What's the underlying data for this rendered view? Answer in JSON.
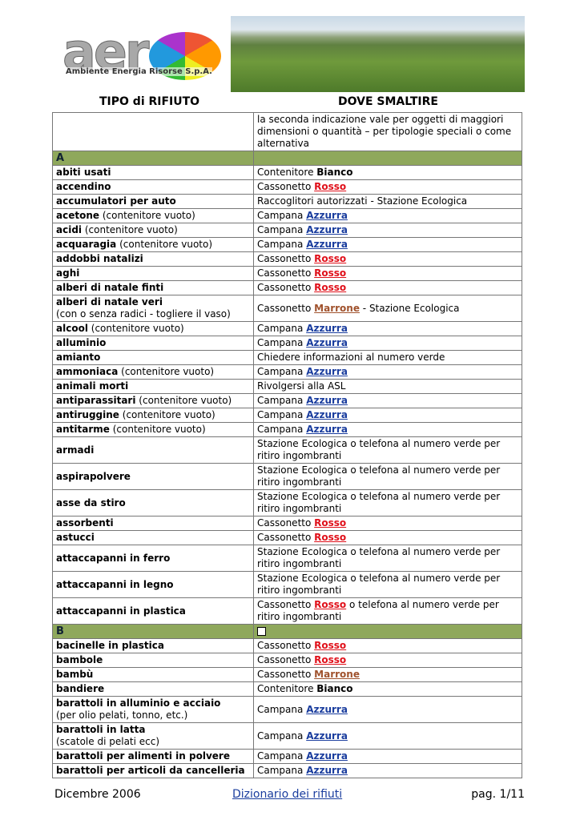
{
  "header": {
    "logo": "aer",
    "company": "Ambiente Energia Risorse S.p.A."
  },
  "columns": [
    "TIPO di RIFIUTO",
    "DOVE SMALTIRE"
  ],
  "intro": "la seconda indicazione vale per oggetti di maggiori dimensioni o quantità – per tipologie speciali o come alternativa",
  "sections": [
    {
      "letter": "A",
      "rows": [
        {
          "item": "abiti usati",
          "where": "Contenitore",
          "bin": "Bianco",
          "bin_color": "#000000"
        },
        {
          "item": "accendino",
          "where": "Cassonetto",
          "bin": "Rosso",
          "bin_color": "#e0101a"
        },
        {
          "item": "accumulatori per auto",
          "where": "Raccoglitori autorizzati - Stazione Ecologica"
        },
        {
          "item": "acetone",
          "note": "(contenitore vuoto)",
          "where": "Campana",
          "bin": "Azzurra",
          "bin_color": "#1a3d9e"
        },
        {
          "item": "acidi",
          "note": "(contenitore vuoto)",
          "where": "Campana",
          "bin": "Azzurra",
          "bin_color": "#1a3d9e"
        },
        {
          "item": "acquaragia",
          "note": "(contenitore vuoto)",
          "where": "Campana",
          "bin": "Azzurra",
          "bin_color": "#1a3d9e"
        },
        {
          "item": "addobbi natalizi",
          "where": "Cassonetto",
          "bin": "Rosso",
          "bin_color": "#e0101a"
        },
        {
          "item": "aghi",
          "where": "Cassonetto",
          "bin": "Rosso",
          "bin_color": "#e0101a"
        },
        {
          "item": "alberi di natale finti",
          "where": "Cassonetto",
          "bin": "Rosso",
          "bin_color": "#e0101a"
        },
        {
          "item": "alberi di natale veri",
          "subnote": "(con o senza radici - togliere il vaso)",
          "where": "Cassonetto",
          "bin": "Marrone",
          "bin_color": "#a0522d",
          "after": "- Stazione Ecologica"
        },
        {
          "item": "alcool",
          "note": "(contenitore vuoto)",
          "where": "Campana",
          "bin": "Azzurra",
          "bin_color": "#1a3d9e"
        },
        {
          "item": "alluminio",
          "where": "Campana",
          "bin": "Azzurra",
          "bin_color": "#1a3d9e"
        },
        {
          "item": "amianto",
          "where": "Chiedere informazioni al numero verde"
        },
        {
          "item": "ammoniaca",
          "note": "(contenitore vuoto)",
          "where": "Campana",
          "bin": "Azzurra",
          "bin_color": "#1a3d9e"
        },
        {
          "item": "animali morti",
          "where": "Rivolgersi alla ASL"
        },
        {
          "item": "antiparassitari",
          "note": "(contenitore vuoto)",
          "where": "Campana",
          "bin": "Azzurra",
          "bin_color": "#1a3d9e"
        },
        {
          "item": "antiruggine",
          "note": "(contenitore vuoto)",
          "where": "Campana",
          "bin": "Azzurra",
          "bin_color": "#1a3d9e"
        },
        {
          "item": "antitarme",
          "note": "(contenitore vuoto)",
          "where": "Campana",
          "bin": "Azzurra",
          "bin_color": "#1a3d9e"
        },
        {
          "item": "armadi",
          "where": "Stazione Ecologica o telefona al numero verde per ritiro ingombranti"
        },
        {
          "item": "aspirapolvere",
          "where": "Stazione Ecologica o telefona al numero verde per ritiro ingombranti"
        },
        {
          "item": "asse da stiro",
          "where": "Stazione Ecologica o telefona al numero verde per ritiro ingombranti"
        },
        {
          "item": "assorbenti",
          "where": "Cassonetto",
          "bin": "Rosso",
          "bin_color": "#e0101a"
        },
        {
          "item": "astucci",
          "where": "Cassonetto",
          "bin": "Rosso",
          "bin_color": "#e0101a"
        },
        {
          "item": "attaccapanni in ferro",
          "where": "Stazione Ecologica o telefona al numero verde per ritiro ingombranti"
        },
        {
          "item": "attaccapanni in legno",
          "where": "Stazione Ecologica o telefona al numero verde per ritiro ingombranti"
        },
        {
          "item": "attaccapanni in plastica",
          "where": "Cassonetto",
          "bin": "Rosso",
          "bin_color": "#e0101a",
          "after": "o telefona al numero verde per ritiro ingombranti"
        }
      ]
    },
    {
      "letter": "B",
      "rows": [
        {
          "item": "bacinelle in plastica",
          "where": "Cassonetto",
          "bin": "Rosso",
          "bin_color": "#e0101a"
        },
        {
          "item": "bambole",
          "where": "Cassonetto",
          "bin": "Rosso",
          "bin_color": "#e0101a"
        },
        {
          "item": "bambù",
          "where": "Cassonetto",
          "bin": "Marrone",
          "bin_color": "#a0522d"
        },
        {
          "item": "bandiere",
          "where": "Contenitore",
          "bin": "Bianco",
          "bin_color": "#000000"
        },
        {
          "item": "barattoli in alluminio e acciaio",
          "subnote": "(per olio pelati, tonno, etc.)",
          "where": "Campana",
          "bin": "Azzurra",
          "bin_color": "#1a3d9e"
        },
        {
          "item": "barattoli in latta",
          "subnote": "(scatole di pelati ecc)",
          "where": "Campana",
          "bin": "Azzurra",
          "bin_color": "#1a3d9e"
        },
        {
          "item": "barattoli per alimenti in polvere",
          "where": "Campana",
          "bin": "Azzurra",
          "bin_color": "#1a3d9e"
        },
        {
          "item": "barattoli per articoli da cancelleria",
          "where": "Campana",
          "bin": "Azzurra",
          "bin_color": "#1a3d9e"
        }
      ]
    }
  ],
  "footer": {
    "date": "Dicembre 2006",
    "title": "Dizionario dei rifiuti",
    "page": "pag. 1/11"
  }
}
